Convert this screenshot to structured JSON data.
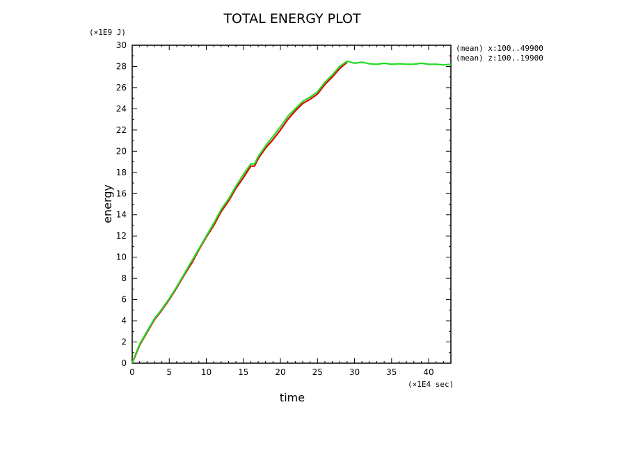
{
  "chart_data": {
    "type": "line",
    "title": "TOTAL ENERGY PLOT",
    "xlabel": "time",
    "ylabel": "energy",
    "x_unit": "(×1E4 sec)",
    "y_unit": "(×1E9 J)",
    "xlim": [
      0,
      43
    ],
    "ylim": [
      0,
      30
    ],
    "xticks": [
      0,
      5,
      10,
      15,
      20,
      25,
      30,
      35,
      40
    ],
    "yticks": [
      0,
      2,
      4,
      6,
      8,
      10,
      12,
      14,
      16,
      18,
      20,
      22,
      24,
      26,
      28,
      30
    ],
    "grid": false,
    "legend_position": "right",
    "series": [
      {
        "name": "(mean) x:100..49900",
        "color": "#e00000",
        "x": [
          0,
          0.3,
          1,
          2,
          3,
          4,
          5,
          6,
          7,
          8,
          9,
          10,
          11,
          12,
          13,
          14,
          15,
          16,
          16.5,
          17,
          18,
          19,
          20,
          21,
          22,
          23,
          24,
          25,
          26,
          27,
          28,
          29
        ],
        "y": [
          0,
          0.5,
          1.7,
          2.9,
          4.1,
          5.0,
          6.0,
          7.1,
          8.3,
          9.4,
          10.7,
          11.9,
          13.0,
          14.3,
          15.3,
          16.5,
          17.5,
          18.6,
          18.6,
          19.3,
          20.3,
          21.1,
          22.0,
          23.0,
          23.8,
          24.5,
          24.9,
          25.4,
          26.3,
          27.0,
          27.8,
          28.4
        ]
      },
      {
        "name": "(mean) z:100..19900",
        "color": "#22dd22",
        "x": [
          0,
          0.3,
          1,
          2,
          3,
          4,
          5,
          6,
          7,
          8,
          9,
          10,
          11,
          12,
          13,
          14,
          15,
          16,
          16.5,
          17,
          18,
          19,
          20,
          21,
          22,
          23,
          24,
          25,
          26,
          27,
          28,
          29,
          30,
          31,
          32,
          33,
          34,
          35,
          36,
          37,
          38,
          39,
          40,
          41,
          42,
          43
        ],
        "y": [
          0,
          0.6,
          1.8,
          3.0,
          4.2,
          5.1,
          6.1,
          7.2,
          8.4,
          9.6,
          10.8,
          12.0,
          13.2,
          14.5,
          15.5,
          16.7,
          17.8,
          18.8,
          18.8,
          19.5,
          20.5,
          21.4,
          22.3,
          23.3,
          24.0,
          24.7,
          25.1,
          25.6,
          26.5,
          27.2,
          28.0,
          28.5,
          28.3,
          28.4,
          28.25,
          28.2,
          28.3,
          28.2,
          28.25,
          28.2,
          28.2,
          28.3,
          28.2,
          28.2,
          28.15,
          28.2
        ]
      }
    ]
  }
}
